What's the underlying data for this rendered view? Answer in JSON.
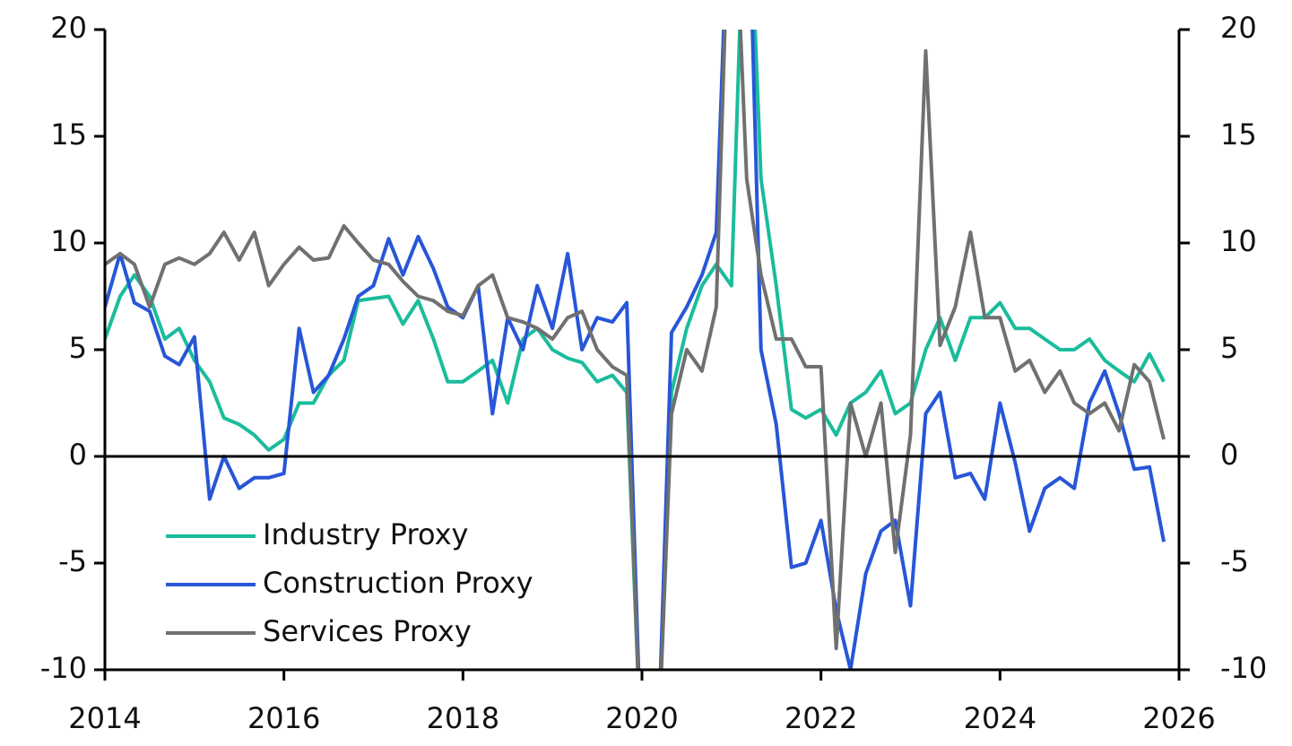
{
  "chart_data": {
    "type": "line",
    "x": [
      2014,
      2014.17,
      2014.33,
      2014.5,
      2014.67,
      2014.83,
      2015,
      2015.17,
      2015.33,
      2015.5,
      2015.67,
      2015.83,
      2016,
      2016.17,
      2016.33,
      2016.5,
      2016.67,
      2016.83,
      2017,
      2017.17,
      2017.33,
      2017.5,
      2017.67,
      2017.83,
      2018,
      2018.17,
      2018.33,
      2018.5,
      2018.67,
      2018.83,
      2019,
      2019.17,
      2019.33,
      2019.5,
      2019.67,
      2019.83,
      2020,
      2020.17,
      2020.33,
      2020.5,
      2020.67,
      2020.83,
      2021,
      2021.17,
      2021.33,
      2021.5,
      2021.67,
      2021.83,
      2022,
      2022.17,
      2022.33,
      2022.5,
      2022.67,
      2022.83,
      2023,
      2023.17,
      2023.33,
      2023.5,
      2023.67,
      2023.83,
      2024,
      2024.17,
      2024.33,
      2024.5,
      2024.67,
      2024.83,
      2025,
      2025.17,
      2025.33,
      2025.5,
      2025.67,
      2025.83
    ],
    "series": [
      {
        "name": "Industry Proxy",
        "color": "#1abc9c",
        "values": [
          5.5,
          7.5,
          8.5,
          7.5,
          5.5,
          6,
          4.5,
          3.5,
          1.8,
          1.5,
          1.0,
          0.3,
          0.8,
          2.5,
          2.5,
          3.8,
          4.5,
          7.3,
          7.4,
          7.5,
          6.2,
          7.3,
          5.5,
          3.5,
          3.5,
          4.0,
          4.5,
          2.5,
          5.5,
          6.0,
          5.0,
          4.6,
          4.4,
          3.5,
          3.8,
          3.0,
          -15,
          -15,
          3,
          6,
          8,
          9,
          8,
          30,
          13,
          8,
          2.2,
          1.8,
          2.2,
          1.0,
          2.5,
          3.0,
          4.0,
          2.0,
          2.5,
          5.0,
          6.5,
          4.5,
          6.5,
          6.5,
          7.2,
          6.0,
          6.0,
          5.5,
          5.0,
          5.0,
          5.5,
          4.5,
          4.0,
          3.5,
          4.8,
          3.5
        ]
      },
      {
        "name": "Construction Proxy",
        "color": "#2756d8",
        "values": [
          7,
          9.5,
          7.2,
          6.8,
          4.7,
          4.3,
          5.6,
          -2.0,
          0,
          -1.5,
          -1.0,
          -1.0,
          -0.8,
          6.0,
          3.0,
          3.8,
          5.5,
          7.5,
          8.0,
          10.2,
          8.5,
          10.3,
          8.8,
          7.0,
          6.5,
          8.0,
          2.0,
          6.5,
          5.0,
          8.0,
          6.0,
          9.5,
          5.0,
          6.5,
          6.3,
          7.2,
          -15,
          -15,
          5.8,
          7.0,
          8.5,
          10.5,
          30,
          30,
          5,
          1.5,
          -5.2,
          -5.0,
          -3,
          -7.2,
          -10,
          -5.5,
          -3.5,
          -3,
          -7,
          2.0,
          3.0,
          -1.0,
          -0.8,
          -2.0,
          2.5,
          -0.3,
          -3.5,
          -1.5,
          -1.0,
          -1.5,
          2.5,
          4.0,
          2.0,
          -0.6,
          -0.5,
          -4.0
        ]
      },
      {
        "name": "Services Proxy",
        "color": "#707070",
        "values": [
          9,
          9.5,
          9,
          7,
          9,
          9.3,
          9,
          9.5,
          10.5,
          9.2,
          10.5,
          8.0,
          9.0,
          9.8,
          9.2,
          9.3,
          10.8,
          10.0,
          9.2,
          9.0,
          8.2,
          7.5,
          7.3,
          6.8,
          6.6,
          8.0,
          8.5,
          6.5,
          6.3,
          6.0,
          5.5,
          6.5,
          6.8,
          5.0,
          4.2,
          3.8,
          -15,
          -15,
          2.0,
          5.0,
          4.0,
          7.0,
          30,
          13,
          8.5,
          5.5,
          5.5,
          4.2,
          4.2,
          -9,
          2.5,
          0,
          2.5,
          -4.5,
          1.0,
          19.0,
          5.2,
          7.0,
          10.5,
          6.5,
          6.5,
          4.0,
          4.5,
          3.0,
          4.0,
          2.5,
          2.0,
          2.5,
          1.2,
          4.3,
          3.5,
          0.8
        ]
      }
    ],
    "xlim": [
      2014,
      2026
    ],
    "xticks": [
      2014,
      2016,
      2018,
      2020,
      2022,
      2024,
      2026
    ],
    "ylim": [
      -10,
      20
    ],
    "yticks": [
      -10,
      -5,
      0,
      5,
      10,
      15,
      20
    ],
    "y2lim": [
      -10,
      20
    ],
    "y2ticks": [
      -10,
      -5,
      0,
      5,
      10,
      15,
      20
    ],
    "legend": "lower left"
  }
}
